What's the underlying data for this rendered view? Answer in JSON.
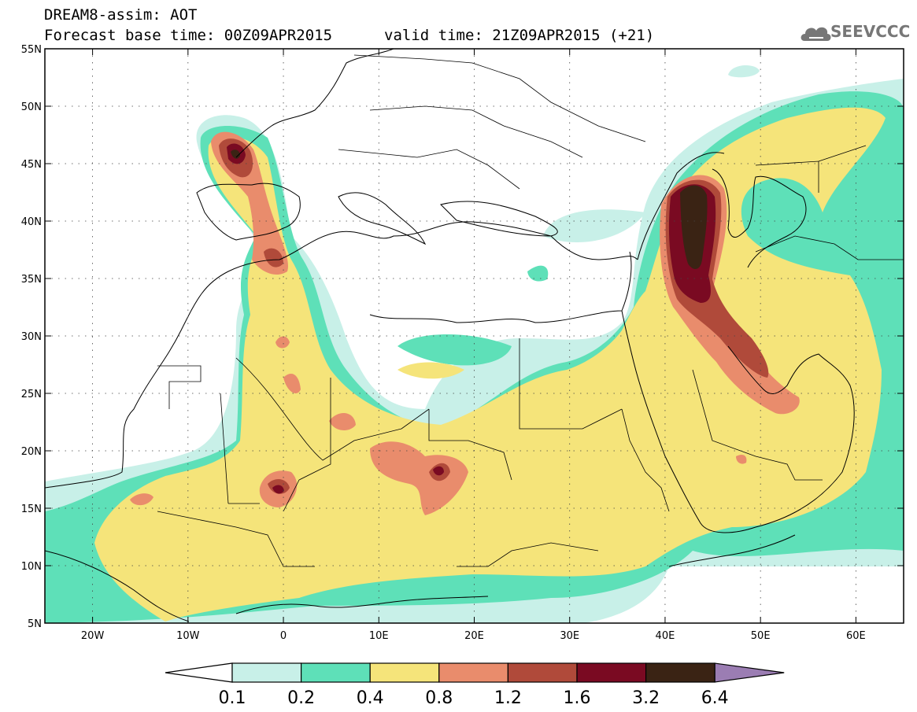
{
  "header": {
    "title": "DREAM8-assim: AOT",
    "base_time_label": "Forecast base time: 00Z09APR2015",
    "valid_time_label": "valid time: 21Z09APR2015 (+21)",
    "logo_text": "SEEVCCC"
  },
  "map": {
    "lon_range": [
      -25,
      65
    ],
    "lat_range": [
      5,
      55
    ],
    "x_ticks": [
      "20W",
      "10W",
      "0",
      "10E",
      "20E",
      "30E",
      "40E",
      "50E",
      "60E"
    ],
    "x_tick_values": [
      -20,
      -10,
      0,
      10,
      20,
      30,
      40,
      50,
      60
    ],
    "y_ticks": [
      "5N",
      "10N",
      "15N",
      "20N",
      "25N",
      "30N",
      "35N",
      "40N",
      "45N",
      "50N",
      "55N"
    ],
    "y_tick_values": [
      5,
      10,
      15,
      20,
      25,
      30,
      35,
      40,
      45,
      50,
      55
    ],
    "grid": "dotted"
  },
  "colorbar": {
    "labels": [
      "0.1",
      "0.2",
      "0.4",
      "0.8",
      "1.2",
      "1.6",
      "3.2",
      "6.4"
    ],
    "colors": [
      "#c8f0e8",
      "#5ee0b8",
      "#f5e47a",
      "#e98c6c",
      "#b04a3a",
      "#7a0a22",
      "#3a2314",
      "#9b7db3"
    ],
    "under_color": "#ffffff"
  }
}
